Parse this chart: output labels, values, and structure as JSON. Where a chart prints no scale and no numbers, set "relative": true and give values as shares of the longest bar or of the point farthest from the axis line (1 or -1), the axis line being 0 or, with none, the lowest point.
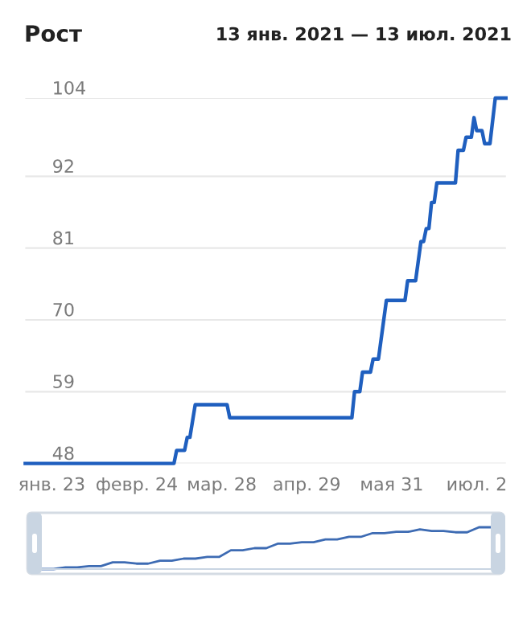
{
  "chart_data": [
    {
      "type": "line",
      "title": "Рост",
      "subtitle": "13 янв. 2021 — 13 июл. 2021",
      "x": [
        "2021-01-13",
        "2021-03-10",
        "2021-03-11",
        "2021-03-14",
        "2021-03-15",
        "2021-03-16",
        "2021-03-18",
        "2021-03-30",
        "2021-03-31",
        "2021-05-16",
        "2021-05-17",
        "2021-05-19",
        "2021-05-20",
        "2021-05-23",
        "2021-05-24",
        "2021-05-26",
        "2021-05-29",
        "2021-06-05",
        "2021-06-06",
        "2021-06-09",
        "2021-06-11",
        "2021-06-12",
        "2021-06-13",
        "2021-06-14",
        "2021-06-15",
        "2021-06-16",
        "2021-06-17",
        "2021-06-24",
        "2021-06-25",
        "2021-06-27",
        "2021-06-28",
        "2021-06-30",
        "2021-07-01",
        "2021-07-02",
        "2021-07-04",
        "2021-07-05",
        "2021-07-07",
        "2021-07-09",
        "2021-07-13"
      ],
      "series": [
        {
          "color": "#1f5fbf",
          "values": [
            48,
            48,
            50,
            50,
            52,
            52,
            57,
            57,
            55,
            55,
            59,
            59,
            62,
            62,
            64,
            64,
            73,
            73,
            76,
            76,
            82,
            82,
            84,
            84,
            88,
            88,
            91,
            91,
            96,
            96,
            98,
            98,
            101,
            99,
            99,
            97,
            97,
            104,
            104
          ]
        }
      ],
      "xlim": [
        "2021-01-13",
        "2021-07-13"
      ],
      "xticks": [
        {
          "value": "2021-01-23",
          "label": "янв. 23"
        },
        {
          "value": "2021-02-24",
          "label": "февр. 24"
        },
        {
          "value": "2021-03-28",
          "label": "мар. 28"
        },
        {
          "value": "2021-04-29",
          "label": "апр. 29"
        },
        {
          "value": "2021-05-31",
          "label": "мая 31"
        },
        {
          "value": "2021-07-02",
          "label": "июл. 2"
        }
      ],
      "ylim": [
        48,
        104
      ],
      "yticks": [
        48,
        59,
        70,
        81,
        92,
        104
      ],
      "grid": "y",
      "marker": "none",
      "line_style": "solid"
    },
    {
      "type": "line",
      "relative": true,
      "categories": [
        null,
        null,
        null,
        null,
        null,
        null,
        null,
        null,
        null,
        null,
        null,
        null,
        null,
        null,
        null,
        null,
        null,
        null,
        null,
        null,
        null,
        null,
        null,
        null,
        null,
        null,
        null,
        null,
        null,
        null,
        null,
        null,
        null,
        null,
        null,
        null,
        null,
        null,
        null
      ],
      "series": [
        {
          "color": "#3d6bb3",
          "values": [
            0,
            0,
            0.04,
            0.04,
            0.07,
            0.07,
            0.16,
            0.16,
            0.13,
            0.13,
            0.2,
            0.2,
            0.25,
            0.25,
            0.29,
            0.29,
            0.45,
            0.45,
            0.5,
            0.5,
            0.61,
            0.61,
            0.64,
            0.64,
            0.71,
            0.71,
            0.77,
            0.77,
            0.86,
            0.86,
            0.89,
            0.89,
            0.95,
            0.91,
            0.91,
            0.88,
            0.88,
            1,
            1
          ]
        }
      ],
      "grid": false,
      "marker": "none",
      "line_style": "solid"
    }
  ]
}
